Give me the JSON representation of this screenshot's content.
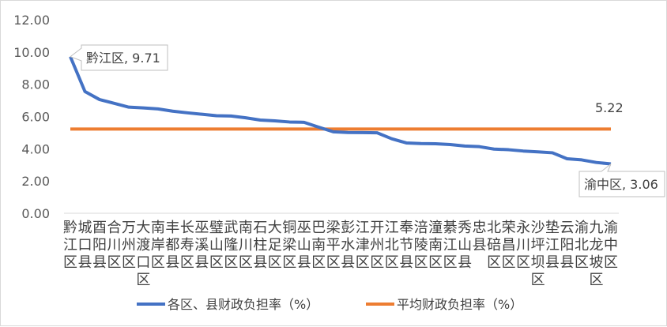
{
  "chart_data": {
    "type": "line",
    "title": "",
    "xlabel": "",
    "ylabel": "",
    "ylim": [
      0,
      12
    ],
    "yticks": [
      "0.00",
      "2.00",
      "4.00",
      "6.00",
      "8.00",
      "10.00",
      "12.00"
    ],
    "grid": false,
    "legend_position": "bottom",
    "categories": [
      "黔江区",
      "城口县",
      "酉阳县",
      "合川区",
      "万州区",
      "大渡口区",
      "南岸区",
      "丰都县",
      "长寿区",
      "巫溪县",
      "璧山区",
      "武隆区",
      "南川区",
      "石柱县",
      "大足区",
      "铜梁区",
      "巫山县",
      "巴南区",
      "梁平区",
      "彭水县",
      "江津区",
      "开州区",
      "江北区",
      "奉节县",
      "涪陵区",
      "潼南区",
      "綦江区",
      "秀山县",
      "忠县",
      "北碚区",
      "荣昌区",
      "永川区",
      "沙坪坝区",
      "垫江县",
      "云阳县",
      "渝北区",
      "九龙坡区",
      "渝中区"
    ],
    "series": [
      {
        "name": "各区、县财政负担率（%）",
        "color": "#4472c4",
        "values": [
          9.71,
          7.55,
          7.05,
          6.82,
          6.58,
          6.53,
          6.47,
          6.33,
          6.23,
          6.14,
          6.05,
          6.03,
          5.92,
          5.78,
          5.73,
          5.66,
          5.64,
          5.34,
          5.05,
          5.01,
          5.0,
          4.99,
          4.62,
          4.36,
          4.32,
          4.31,
          4.26,
          4.17,
          4.13,
          3.98,
          3.94,
          3.86,
          3.81,
          3.75,
          3.38,
          3.31,
          3.15,
          3.06
        ]
      },
      {
        "name": "平均财政负担率（%）",
        "color": "#ed7d31",
        "values": [
          5.22,
          5.22,
          5.22,
          5.22,
          5.22,
          5.22,
          5.22,
          5.22,
          5.22,
          5.22,
          5.22,
          5.22,
          5.22,
          5.22,
          5.22,
          5.22,
          5.22,
          5.22,
          5.22,
          5.22,
          5.22,
          5.22,
          5.22,
          5.22,
          5.22,
          5.22,
          5.22,
          5.22,
          5.22,
          5.22,
          5.22,
          5.22,
          5.22,
          5.22,
          5.22,
          5.22,
          5.22,
          5.22
        ]
      }
    ],
    "annotations": {
      "max": {
        "text": "黔江区, 9.71",
        "index": 0
      },
      "min": {
        "text": "渝中区, 3.06",
        "index": 37
      },
      "average": {
        "text": "5.22"
      }
    }
  }
}
